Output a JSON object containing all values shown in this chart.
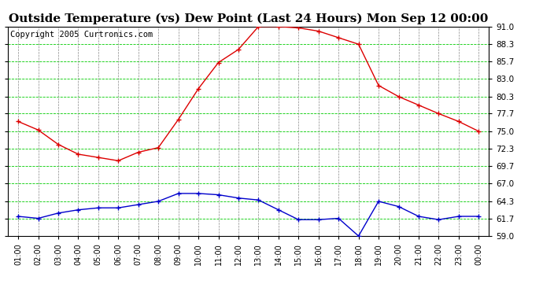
{
  "title": "Outside Temperature (vs) Dew Point (Last 24 Hours) Mon Sep 12 00:00",
  "copyright": "Copyright 2005 Curtronics.com",
  "x_labels": [
    "01:00",
    "02:00",
    "03:00",
    "04:00",
    "05:00",
    "06:00",
    "07:00",
    "08:00",
    "09:00",
    "10:00",
    "11:00",
    "12:00",
    "13:00",
    "14:00",
    "15:00",
    "16:00",
    "17:00",
    "18:00",
    "19:00",
    "20:00",
    "21:00",
    "22:00",
    "23:00",
    "00:00"
  ],
  "temp_data": [
    76.5,
    75.2,
    73.0,
    71.5,
    71.0,
    70.5,
    71.8,
    72.5,
    76.8,
    81.5,
    85.5,
    87.5,
    91.0,
    91.0,
    90.8,
    90.3,
    89.3,
    88.3,
    82.0,
    80.3,
    79.0,
    77.7,
    76.5,
    75.0
  ],
  "dew_data": [
    62.0,
    61.7,
    62.5,
    63.0,
    63.3,
    63.3,
    63.8,
    64.3,
    65.5,
    65.5,
    65.3,
    64.8,
    64.5,
    63.0,
    61.5,
    61.5,
    61.7,
    59.0,
    64.3,
    63.5,
    62.0,
    61.5,
    62.0,
    62.0
  ],
  "temp_color": "#dd0000",
  "dew_color": "#0000cc",
  "grid_h_color": "#00cc00",
  "grid_v_color": "#888888",
  "bg_color": "#ffffff",
  "plot_bg_color": "#ffffff",
  "ylim": [
    59.0,
    91.0
  ],
  "yticks": [
    59.0,
    61.7,
    64.3,
    67.0,
    69.7,
    72.3,
    75.0,
    77.7,
    80.3,
    83.0,
    85.7,
    88.3,
    91.0
  ],
  "title_fontsize": 11,
  "copyright_fontsize": 7.5
}
